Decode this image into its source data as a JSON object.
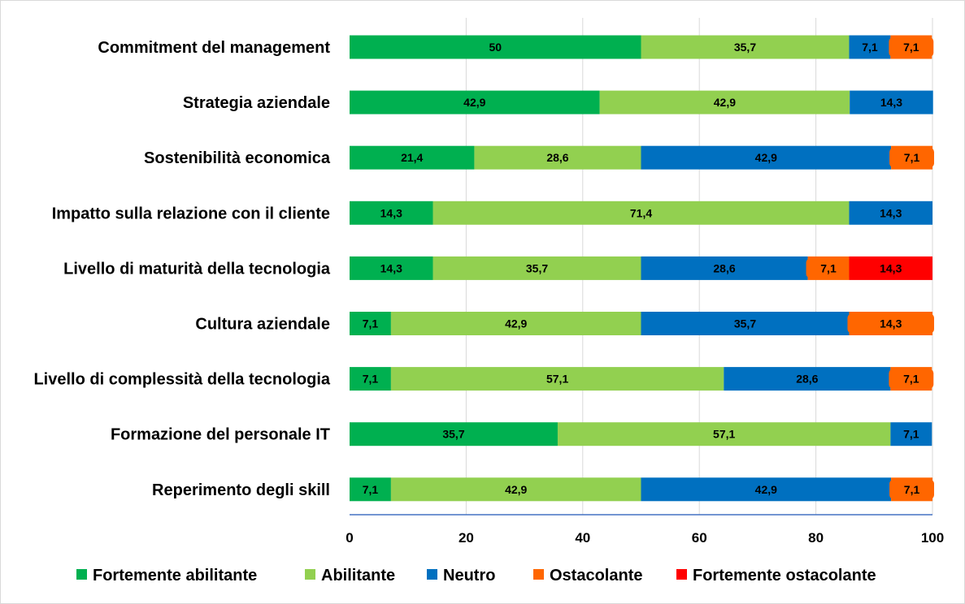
{
  "chart_data": {
    "type": "bar",
    "orientation": "horizontal",
    "stacked": true,
    "title": "",
    "xlabel": "",
    "ylabel": "",
    "xlim": [
      0,
      100
    ],
    "x_ticks": [
      0,
      20,
      40,
      60,
      80,
      100
    ],
    "grid": "vertical",
    "legend_position": "bottom",
    "categories": [
      "Commitment del management",
      "Strategia aziendale",
      "Sostenibilità economica",
      "Impatto sulla relazione con il cliente",
      "Livello di maturità della tecnologia",
      "Cultura aziendale",
      "Livello di complessità della tecnologia",
      "Formazione del personale IT",
      "Reperimento degli skill"
    ],
    "series": [
      {
        "name": "Fortemente abilitante",
        "color": "#00b050",
        "values": [
          50,
          42.9,
          21.4,
          14.3,
          14.3,
          7.1,
          7.1,
          35.7,
          7.1
        ],
        "labels": [
          "50",
          "42,9",
          "21,4",
          "14,3",
          "14,3",
          "7,1",
          "7,1",
          "35,7",
          "7,1"
        ]
      },
      {
        "name": "Abilitante",
        "color": "#92d050",
        "values": [
          35.7,
          42.9,
          28.6,
          71.4,
          35.7,
          42.9,
          57.1,
          57.1,
          42.9
        ],
        "labels": [
          "35,7",
          "42,9",
          "28,6",
          "71,4",
          "35,7",
          "42,9",
          "57,1",
          "57,1",
          "42,9"
        ]
      },
      {
        "name": "Neutro",
        "color": "#0070c0",
        "values": [
          7.1,
          14.3,
          42.9,
          14.3,
          28.6,
          35.7,
          28.6,
          7.1,
          42.9
        ],
        "labels": [
          "7,1",
          "14,3",
          "42,9",
          "14,3",
          "28,6",
          "35,7",
          "28,6",
          "7,1",
          "42,9"
        ]
      },
      {
        "name": "Ostacolante",
        "color": "#ff6600",
        "values": [
          7.1,
          0,
          7.1,
          0,
          7.1,
          14.3,
          7.1,
          0,
          7.1
        ],
        "labels": [
          "7,1",
          "",
          "7,1",
          "",
          "7,1",
          "14,3",
          "7,1",
          "",
          "7,1"
        ]
      },
      {
        "name": "Fortemente ostacolante",
        "color": "#ff0000",
        "values": [
          0,
          0,
          0,
          0,
          14.3,
          0,
          0,
          0,
          0
        ],
        "labels": [
          "",
          "",
          "",
          "",
          "14,3",
          "",
          "",
          "",
          ""
        ]
      }
    ]
  }
}
